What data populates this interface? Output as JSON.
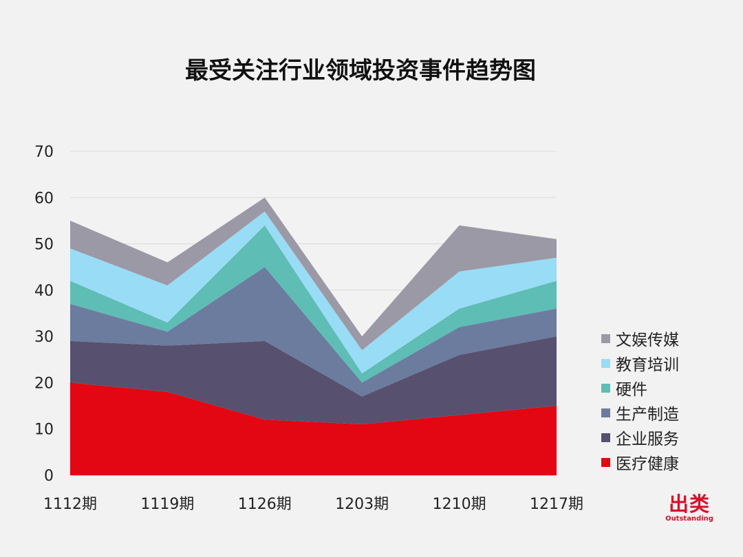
{
  "chart_data": {
    "type": "area",
    "stacked": true,
    "title": "最受关注行业领域投资事件趋势图",
    "categories": [
      "1112期",
      "1119期",
      "1126期",
      "1203期",
      "1210期",
      "1217期"
    ],
    "y_ticks": [
      "0",
      "10",
      "20",
      "30",
      "40",
      "50",
      "60",
      "70"
    ],
    "ylim": [
      0,
      70
    ],
    "grid": true,
    "legend_position": "right",
    "series": [
      {
        "name": "医疗健康",
        "color": "#e30613",
        "values": [
          20,
          18,
          12,
          11,
          13,
          15
        ]
      },
      {
        "name": "企业服务",
        "color": "#58506f",
        "values": [
          9,
          10,
          17,
          6,
          13,
          15
        ]
      },
      {
        "name": "生产制造",
        "color": "#6b7c9e",
        "values": [
          8,
          3,
          16,
          3,
          6,
          6
        ]
      },
      {
        "name": "硬件",
        "color": "#5ebdb5",
        "values": [
          5,
          2,
          9,
          2,
          4,
          6
        ]
      },
      {
        "name": "教育培训",
        "color": "#99dcf6",
        "values": [
          7,
          8,
          3,
          5,
          8,
          5
        ]
      },
      {
        "name": "文娱传媒",
        "color": "#9b99a5",
        "values": [
          6,
          5,
          3,
          3,
          10,
          4
        ]
      }
    ]
  },
  "brand": {
    "name_cn": "出类",
    "name_en": "Outstanding"
  }
}
